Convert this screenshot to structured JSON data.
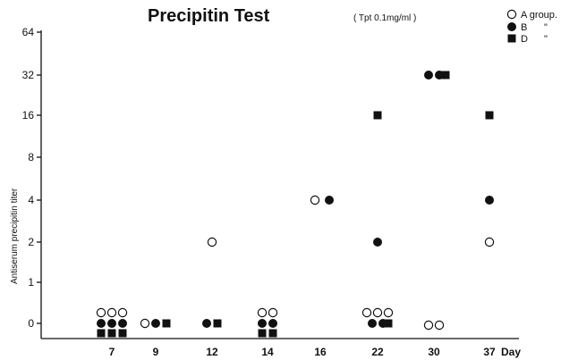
{
  "chart_data": {
    "type": "scatter",
    "title": "Precipitin Test",
    "subtitle": "( Tpt 0.1mg/ml )",
    "xlabel": "Day",
    "ylabel": "Antiserum precipitin titer",
    "x_ticks": [
      "7",
      "9",
      "12",
      "14",
      "16",
      "22",
      "30",
      "37"
    ],
    "y_ticks": [
      "0",
      "1",
      "2",
      "4",
      "8",
      "16",
      "32",
      "64"
    ],
    "legend": [
      {
        "marker": "open-circle",
        "label": "A group."
      },
      {
        "marker": "filled-circle",
        "label": "B",
        "ditto": "\""
      },
      {
        "marker": "filled-square",
        "label": "D",
        "ditto": "\""
      }
    ],
    "series": [
      {
        "name": "A group",
        "marker": "open-circle",
        "points": [
          {
            "x": 7,
            "y": 0,
            "n": 3
          },
          {
            "x": 9,
            "y": 0,
            "n": 1
          },
          {
            "x": 12,
            "y": 2,
            "n": 1
          },
          {
            "x": 14,
            "y": 0,
            "n": 2
          },
          {
            "x": 16,
            "y": 4,
            "n": 1
          },
          {
            "x": 22,
            "y": 0,
            "n": 3
          },
          {
            "x": 30,
            "y": 0,
            "n": 2
          },
          {
            "x": 37,
            "y": 2,
            "n": 1
          }
        ]
      },
      {
        "name": "B",
        "marker": "filled-circle",
        "points": [
          {
            "x": 7,
            "y": 0,
            "n": 3
          },
          {
            "x": 9,
            "y": 0,
            "n": 1
          },
          {
            "x": 12,
            "y": 0,
            "n": 1
          },
          {
            "x": 14,
            "y": 0,
            "n": 2
          },
          {
            "x": 16,
            "y": 4,
            "n": 1
          },
          {
            "x": 22,
            "y": 0,
            "n": 2
          },
          {
            "x": 22,
            "y": 2,
            "n": 1
          },
          {
            "x": 30,
            "y": 32,
            "n": 2
          },
          {
            "x": 37,
            "y": 4,
            "n": 1
          }
        ]
      },
      {
        "name": "D",
        "marker": "filled-square",
        "points": [
          {
            "x": 7,
            "y": 0,
            "n": 3
          },
          {
            "x": 9,
            "y": 0,
            "n": 1
          },
          {
            "x": 12,
            "y": 0,
            "n": 1
          },
          {
            "x": 14,
            "y": 0,
            "n": 2
          },
          {
            "x": 22,
            "y": 0,
            "n": 1
          },
          {
            "x": 22,
            "y": 16,
            "n": 1
          },
          {
            "x": 30,
            "y": 32,
            "n": 1
          },
          {
            "x": 37,
            "y": 16,
            "n": 1
          }
        ]
      }
    ]
  }
}
